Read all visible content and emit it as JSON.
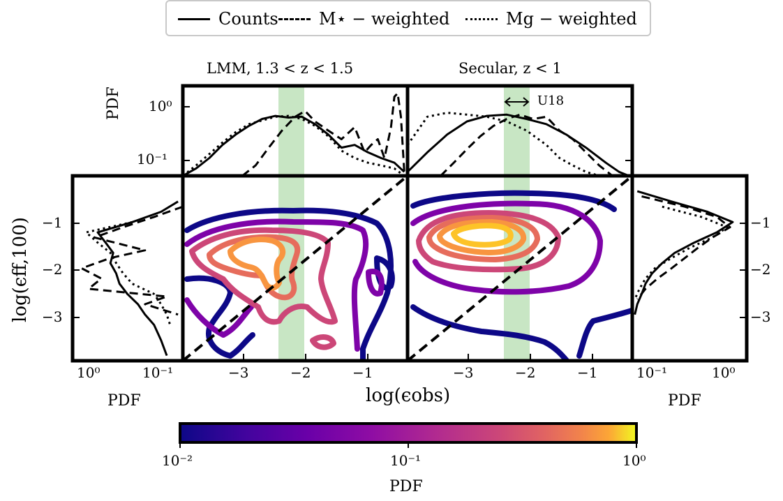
{
  "legend": {
    "items": [
      {
        "label": "Counts",
        "style": "solid"
      },
      {
        "label": "M⋆ − weighted",
        "style": "dashed"
      },
      {
        "label": "Mg − weighted",
        "style": "dotted"
      }
    ]
  },
  "panels": {
    "left_title": "LMM,  1.3 < z < 1.5",
    "right_title": "Secular,  z < 1",
    "annotation": "U18"
  },
  "axes": {
    "xlabel": "log(ϵobs)",
    "ylabel": "log(ϵff,100)",
    "top_ylabel": "PDF",
    "side_xlabel_left": "PDF",
    "side_xlabel_right": "PDF",
    "x_ticks": [
      "−3",
      "−2",
      "−1"
    ],
    "y_ticks": [
      "−1",
      "−2",
      "−3"
    ],
    "top_y_ticks": [
      "10⁰",
      "10⁻¹"
    ],
    "side_left_ticks": [
      "10⁰",
      "10⁻¹"
    ],
    "side_right_ticks": [
      "10⁻¹",
      "10⁰"
    ]
  },
  "colorbar": {
    "label": "PDF",
    "ticks": [
      "10⁻²",
      "10⁻¹",
      "10⁰"
    ],
    "colormap": "plasma",
    "range": [
      0.01,
      1
    ],
    "scale": "log"
  },
  "chart_data": [
    {
      "type": "contour",
      "panel": "LMM",
      "xlim": [
        -3.8,
        -0.4
      ],
      "ylim": [
        -3.9,
        -0.3
      ],
      "x_ticks": [
        -3,
        -2,
        -1
      ],
      "y_ticks": [
        -1,
        -2,
        -3
      ],
      "observed_band": [
        -2.25,
        -1.85
      ],
      "one_to_one_line": true,
      "contour_levels": [
        0.01,
        0.03,
        0.07,
        0.15,
        0.3
      ],
      "colors": [
        "#0d0887",
        "#7e03a8",
        "#cc4778",
        "#e66c5c",
        "#f89540"
      ]
    },
    {
      "type": "contour",
      "panel": "Secular",
      "xlim": [
        -3.8,
        -0.4
      ],
      "ylim": [
        -3.9,
        -0.3
      ],
      "x_ticks": [
        -3,
        -2,
        -1
      ],
      "y_ticks": [
        -1,
        -2,
        -3
      ],
      "observed_band": [
        -2.25,
        -1.85
      ],
      "one_to_one_line": true,
      "contour_levels": [
        0.01,
        0.03,
        0.07,
        0.15,
        0.3,
        0.6
      ],
      "colors": [
        "#0d0887",
        "#7e03a8",
        "#cc4778",
        "#e66c5c",
        "#f89540",
        "#fdc328"
      ]
    },
    {
      "type": "line",
      "panel": "LMM marginal (top)",
      "yscale": "log",
      "ylim": [
        0.06,
        2
      ],
      "series": [
        {
          "name": "Counts",
          "style": "solid",
          "x": [
            -3.8,
            -3.6,
            -3.4,
            -3.2,
            -3.0,
            -2.8,
            -2.6,
            -2.4,
            -2.2,
            -2.0,
            -1.8,
            -1.6,
            -1.4,
            -1.2,
            -1.0,
            -0.8,
            -0.6,
            -0.45
          ],
          "y": [
            0.06,
            0.08,
            0.12,
            0.2,
            0.3,
            0.42,
            0.55,
            0.62,
            0.58,
            0.6,
            0.45,
            0.3,
            0.18,
            0.2,
            0.15,
            0.12,
            0.1,
            0.07
          ]
        },
        {
          "name": "M⋆ − weighted",
          "style": "dashed",
          "x": [
            -2.9,
            -2.7,
            -2.5,
            -2.3,
            -2.1,
            -1.95,
            -1.8,
            -1.6,
            -1.4,
            -1.2,
            -1.05,
            -0.95,
            -0.85,
            -0.75,
            -0.65,
            -0.6,
            -0.55,
            -0.5,
            -0.45
          ],
          "y": [
            0.06,
            0.09,
            0.18,
            0.35,
            0.6,
            0.75,
            0.5,
            0.35,
            0.25,
            0.4,
            0.15,
            0.2,
            0.25,
            0.12,
            0.4,
            1.3,
            1.5,
            0.6,
            0.07
          ]
        },
        {
          "name": "Mg − weighted",
          "style": "dotted",
          "x": [
            -3.8,
            -3.6,
            -3.4,
            -3.2,
            -3.0,
            -2.8,
            -2.6,
            -2.4,
            -2.2,
            -2.0,
            -1.8,
            -1.6,
            -1.4,
            -1.2,
            -1.0,
            -0.8,
            -0.6,
            -0.45
          ],
          "y": [
            0.06,
            0.09,
            0.14,
            0.22,
            0.33,
            0.45,
            0.52,
            0.6,
            0.62,
            0.55,
            0.42,
            0.28,
            0.16,
            0.12,
            0.1,
            0.09,
            0.08,
            0.06
          ]
        }
      ]
    },
    {
      "type": "line",
      "panel": "Secular marginal (top)",
      "yscale": "log",
      "ylim": [
        0.06,
        2
      ],
      "series": [
        {
          "name": "Counts",
          "style": "solid",
          "x": [
            -3.8,
            -3.5,
            -3.2,
            -2.9,
            -2.6,
            -2.3,
            -2.0,
            -1.7,
            -1.4,
            -1.1,
            -0.8,
            -0.6,
            -0.45
          ],
          "y": [
            0.07,
            0.15,
            0.3,
            0.5,
            0.62,
            0.65,
            0.55,
            0.45,
            0.3,
            0.18,
            0.1,
            0.07,
            0.06
          ]
        },
        {
          "name": "M⋆ − weighted",
          "style": "dashed",
          "x": [
            -3.3,
            -3.1,
            -2.9,
            -2.7,
            -2.5,
            -2.3,
            -2.1,
            -1.9,
            -1.7,
            -1.5,
            -1.3,
            -1.1,
            -0.9,
            -0.7
          ],
          "y": [
            0.06,
            0.1,
            0.17,
            0.28,
            0.42,
            0.55,
            0.65,
            0.55,
            0.6,
            0.35,
            0.25,
            0.15,
            0.09,
            0.06
          ]
        },
        {
          "name": "Mg − weighted",
          "style": "dotted",
          "x": [
            -3.8,
            -3.5,
            -3.2,
            -2.9,
            -2.6,
            -2.3,
            -2.0,
            -1.7,
            -1.5,
            -1.3,
            -1.1,
            -0.9
          ],
          "y": [
            0.2,
            0.6,
            0.7,
            0.65,
            0.6,
            0.5,
            0.35,
            0.2,
            0.12,
            0.09,
            0.07,
            0.06
          ]
        }
      ]
    },
    {
      "type": "line",
      "panel": "LMM marginal (left)",
      "xscale": "log",
      "xlim": [
        2,
        0.06
      ],
      "series": [
        {
          "name": "Counts",
          "style": "solid",
          "y": [
            -0.8,
            -1.0,
            -1.2,
            -1.4,
            -1.6,
            -1.8,
            -2.0,
            -2.2,
            -2.4,
            -2.6,
            -2.8,
            -3.0,
            -3.2,
            -3.5,
            -3.8
          ],
          "x": [
            0.07,
            0.12,
            0.3,
            0.9,
            0.7,
            0.55,
            0.6,
            0.5,
            0.45,
            0.35,
            0.25,
            0.2,
            0.15,
            0.12,
            0.1
          ]
        },
        {
          "name": "M⋆ − weighted",
          "style": "dashed",
          "y": [
            -0.9,
            -1.1,
            -1.3,
            -1.5,
            -1.75,
            -1.9,
            -2.1,
            -2.3,
            -2.5,
            -2.65,
            -2.8,
            -3.0
          ],
          "x": [
            0.06,
            0.15,
            0.4,
            1.0,
            0.2,
            0.6,
            1.5,
            0.8,
            1.2,
            0.1,
            0.2,
            0.07
          ]
        },
        {
          "name": "Mg − weighted",
          "style": "dotted",
          "y": [
            -1.2,
            -1.4,
            -1.6,
            -1.8,
            -2.0,
            -2.2,
            -2.4,
            -2.6,
            -2.8,
            -3.0,
            -3.2
          ],
          "x": [
            0.3,
            1.3,
            0.9,
            0.6,
            0.5,
            0.4,
            0.3,
            0.15,
            0.12,
            0.1,
            0.09
          ]
        }
      ]
    },
    {
      "type": "line",
      "panel": "Secular marginal (right)",
      "xscale": "log",
      "xlim": [
        0.06,
        2
      ],
      "series": [
        {
          "name": "Counts",
          "style": "solid",
          "y": [
            -0.6,
            -0.8,
            -1.0,
            -1.2,
            -1.4,
            -1.6,
            -1.8,
            -2.0,
            -2.2,
            -2.4,
            -2.6,
            -2.8,
            -3.0
          ],
          "x": [
            0.07,
            0.2,
            0.6,
            1.3,
            0.8,
            0.4,
            0.22,
            0.15,
            0.11,
            0.09,
            0.08,
            0.07,
            0.065
          ]
        },
        {
          "name": "M⋆ − weighted",
          "style": "dashed",
          "y": [
            -0.7,
            -0.9,
            -1.1,
            -1.3,
            -1.5,
            -1.7,
            -1.9,
            -2.1,
            -2.3,
            -2.5,
            -2.7
          ],
          "x": [
            0.08,
            0.3,
            0.8,
            1.2,
            0.7,
            0.45,
            0.3,
            0.2,
            0.13,
            0.09,
            0.07
          ]
        },
        {
          "name": "Mg − weighted",
          "style": "dotted",
          "y": [
            -0.9,
            -1.1,
            -1.3,
            -1.5,
            -1.7,
            -1.9,
            -2.1,
            -2.3,
            -2.5,
            -2.7
          ],
          "x": [
            0.15,
            0.5,
            1.1,
            0.7,
            0.35,
            0.2,
            0.12,
            0.09,
            0.075,
            0.065
          ]
        }
      ]
    }
  ]
}
